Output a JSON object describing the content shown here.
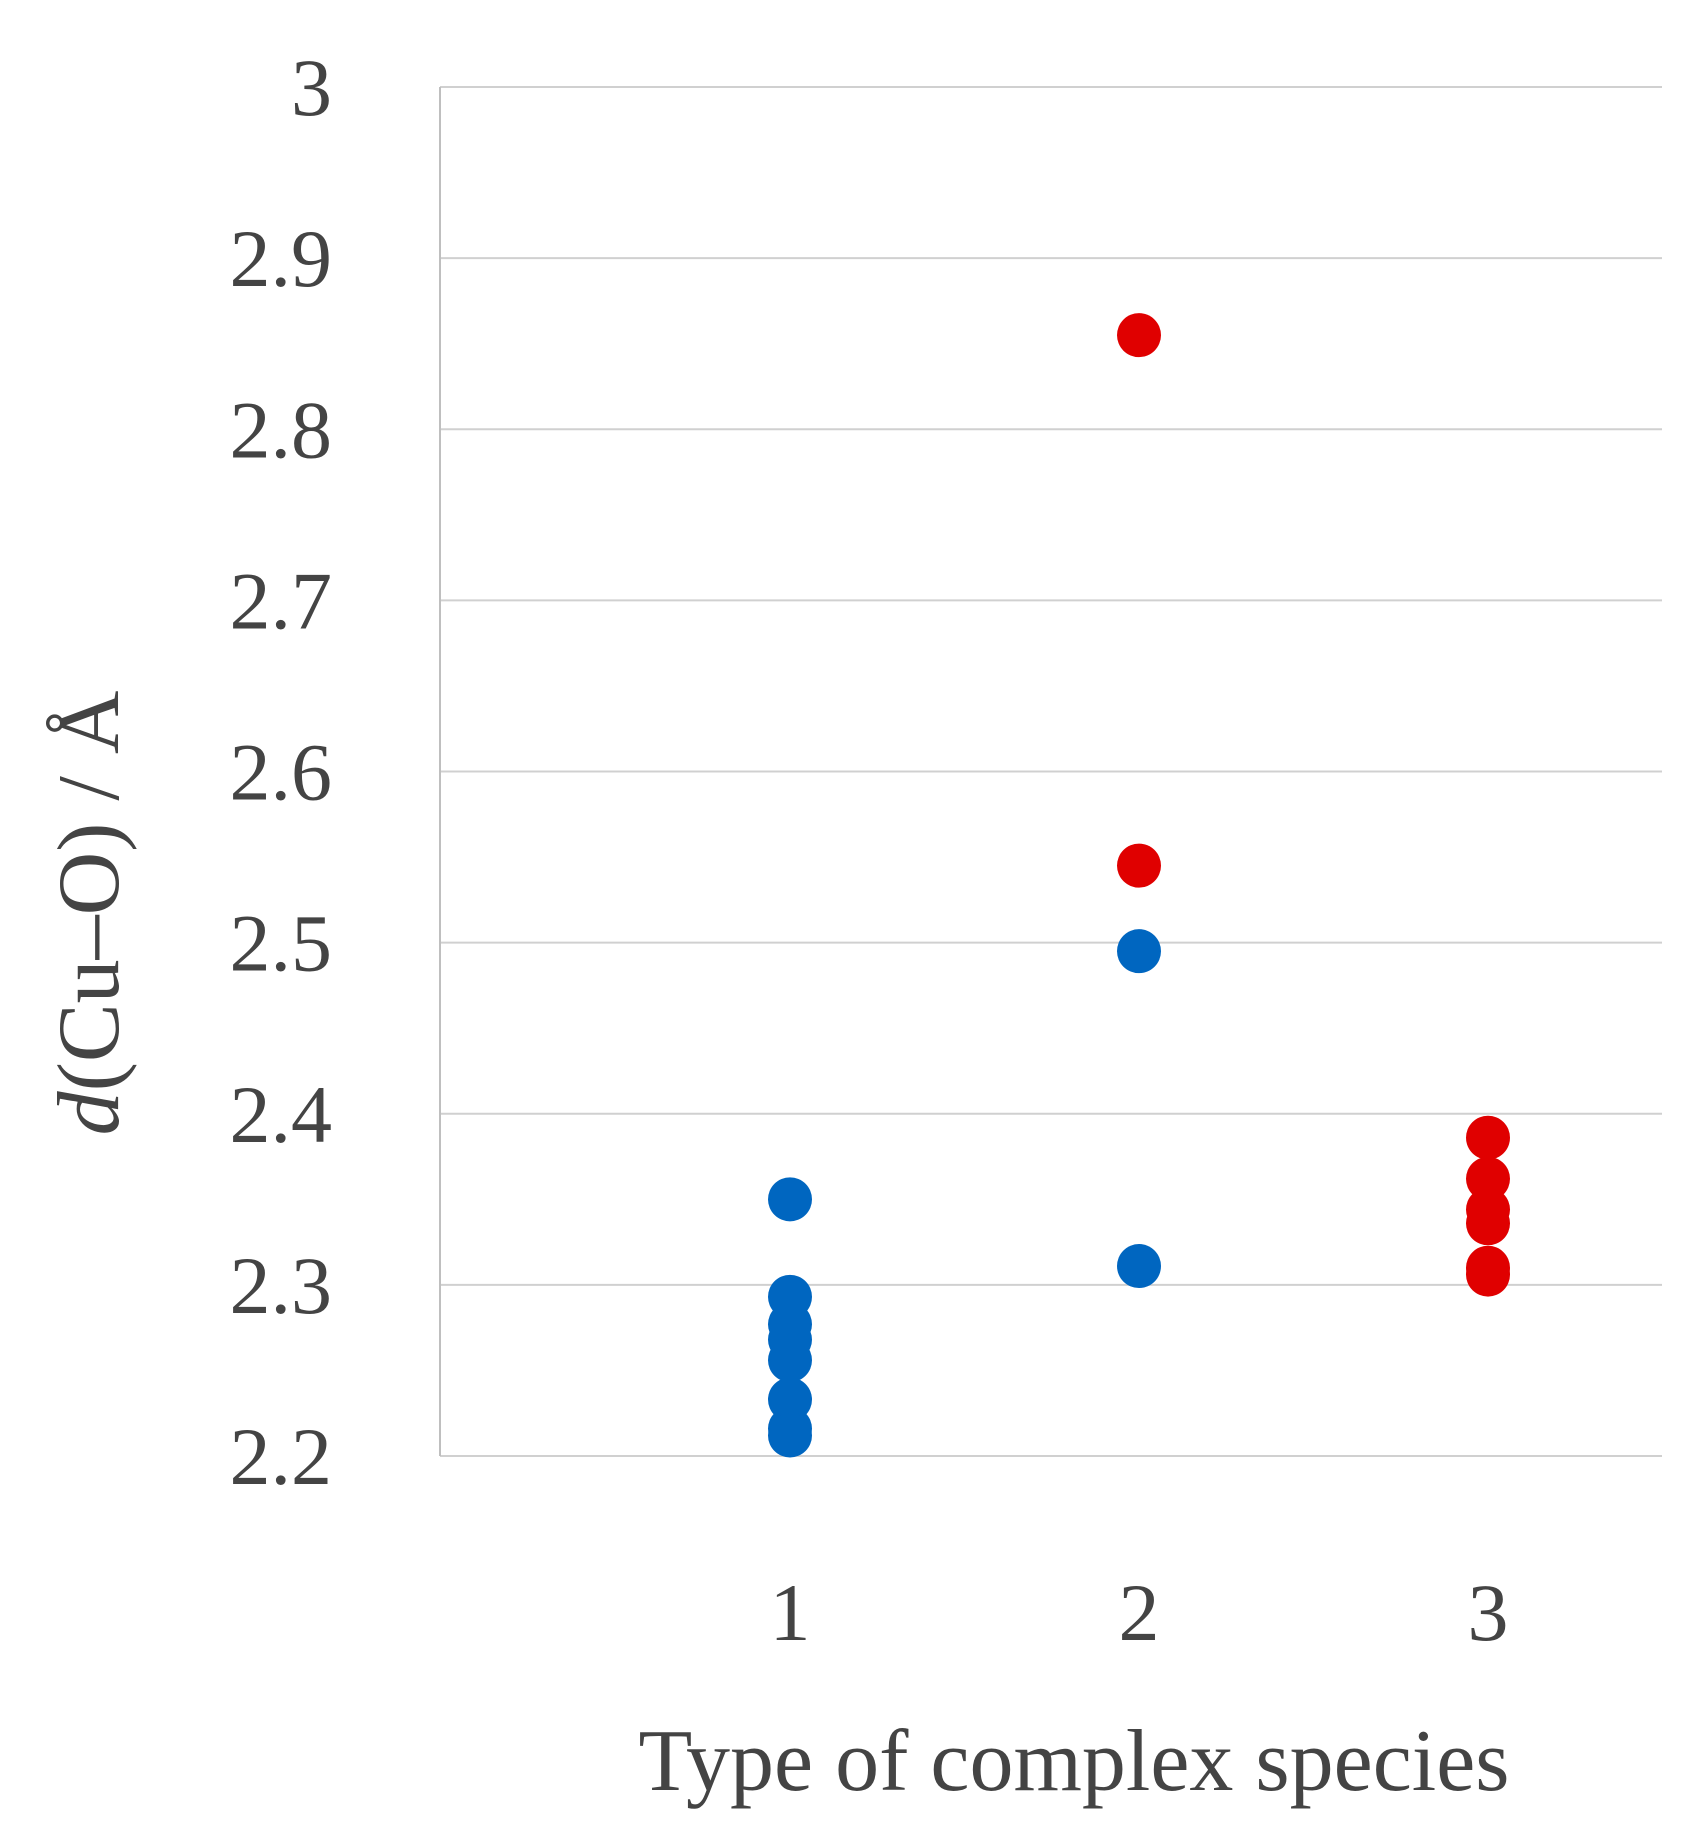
{
  "chart_data": {
    "type": "scatter",
    "title": "",
    "xlabel": "Type of complex species",
    "ylabel_italic": "d",
    "ylabel_rest": "(Cu–O) / Å",
    "ylim": [
      2.2,
      3.0
    ],
    "yticks": [
      "2.2",
      "2.3",
      "2.4",
      "2.5",
      "2.6",
      "2.7",
      "2.8",
      "2.9",
      "3"
    ],
    "categories": [
      "1",
      "2",
      "3"
    ],
    "grid": true,
    "legend": "none",
    "series": [
      {
        "name": "blue",
        "color": "#0066c0",
        "points": [
          {
            "x": 1,
            "y": 2.35
          },
          {
            "x": 1,
            "y": 2.293
          },
          {
            "x": 1,
            "y": 2.277
          },
          {
            "x": 1,
            "y": 2.268
          },
          {
            "x": 1,
            "y": 2.256
          },
          {
            "x": 1,
            "y": 2.233
          },
          {
            "x": 1,
            "y": 2.216
          },
          {
            "x": 1,
            "y": 2.212
          },
          {
            "x": 2,
            "y": 2.495
          },
          {
            "x": 2,
            "y": 2.311
          }
        ]
      },
      {
        "name": "red",
        "color": "#e00000",
        "points": [
          {
            "x": 2,
            "y": 2.855
          },
          {
            "x": 2,
            "y": 2.545
          },
          {
            "x": 3,
            "y": 2.386
          },
          {
            "x": 3,
            "y": 2.362
          },
          {
            "x": 3,
            "y": 2.344
          },
          {
            "x": 3,
            "y": 2.336
          },
          {
            "x": 3,
            "y": 2.31
          },
          {
            "x": 3,
            "y": 2.306
          }
        ]
      }
    ]
  }
}
